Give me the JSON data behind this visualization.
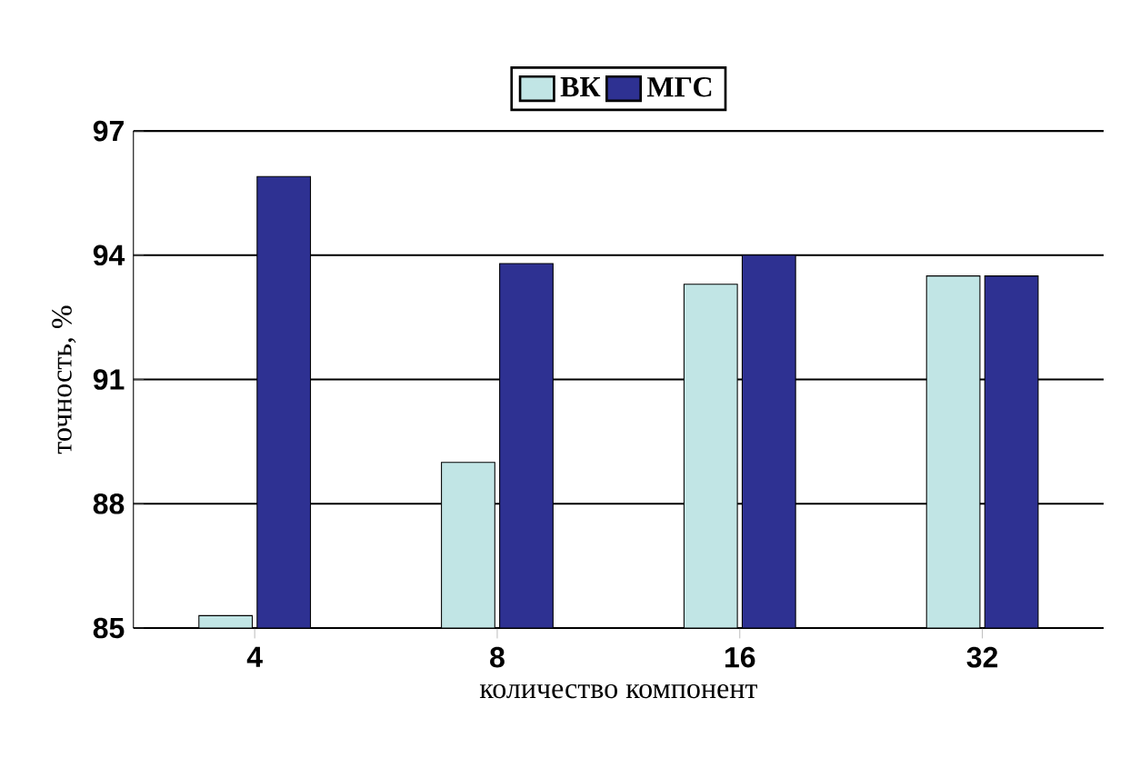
{
  "chart_data": {
    "type": "bar",
    "xlabel": "количество компонент",
    "ylabel": "точность, %",
    "categories": [
      "4",
      "8",
      "16",
      "32"
    ],
    "series": [
      {
        "name": "ВК",
        "color": "#c1e5e5",
        "values": [
          85.3,
          89.0,
          93.3,
          93.5
        ]
      },
      {
        "name": "МГС",
        "color": "#2e3192",
        "values": [
          95.9,
          93.8,
          94.0,
          93.5
        ]
      }
    ],
    "ylim": [
      85,
      97
    ],
    "yticks": [
      85,
      88,
      91,
      94,
      97
    ],
    "grid": "y",
    "legend": "top"
  }
}
